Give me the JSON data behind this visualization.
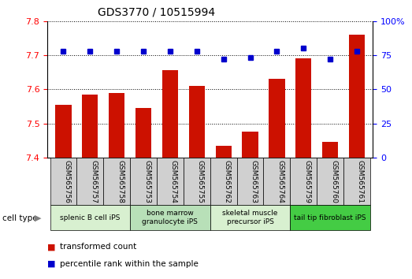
{
  "title": "GDS3770 / 10515994",
  "samples": [
    "GSM565756",
    "GSM565757",
    "GSM565758",
    "GSM565753",
    "GSM565754",
    "GSM565755",
    "GSM565762",
    "GSM565763",
    "GSM565764",
    "GSM565759",
    "GSM565760",
    "GSM565761"
  ],
  "red_values": [
    7.555,
    7.585,
    7.59,
    7.545,
    7.655,
    7.61,
    7.435,
    7.475,
    7.63,
    7.69,
    7.445,
    7.76
  ],
  "blue_values": [
    78,
    78,
    78,
    78,
    78,
    78,
    72,
    73,
    78,
    80,
    72,
    78
  ],
  "ylim_left": [
    7.4,
    7.8
  ],
  "ylim_right": [
    0,
    100
  ],
  "yticks_left": [
    7.4,
    7.5,
    7.6,
    7.7,
    7.8
  ],
  "yticks_right": [
    0,
    25,
    50,
    75,
    100
  ],
  "cell_type_groups": [
    {
      "label": "splenic B cell iPS",
      "indices": [
        0,
        1,
        2
      ],
      "color": "#d8f0d0"
    },
    {
      "label": "bone marrow\ngranulocyte iPS",
      "indices": [
        3,
        4,
        5
      ],
      "color": "#b8e0b8"
    },
    {
      "label": "skeletal muscle\nprecursor iPS",
      "indices": [
        6,
        7,
        8
      ],
      "color": "#d8f0d0"
    },
    {
      "label": "tail tip fibroblast iPS",
      "indices": [
        9,
        10,
        11
      ],
      "color": "#44cc44"
    }
  ],
  "bar_color": "#cc1100",
  "dot_color": "#0000cc",
  "bar_width": 0.6,
  "xtick_box_color": "#d0d0d0",
  "legend_entries": [
    {
      "label": "transformed count",
      "color": "#cc1100"
    },
    {
      "label": "percentile rank within the sample",
      "color": "#0000cc"
    }
  ]
}
